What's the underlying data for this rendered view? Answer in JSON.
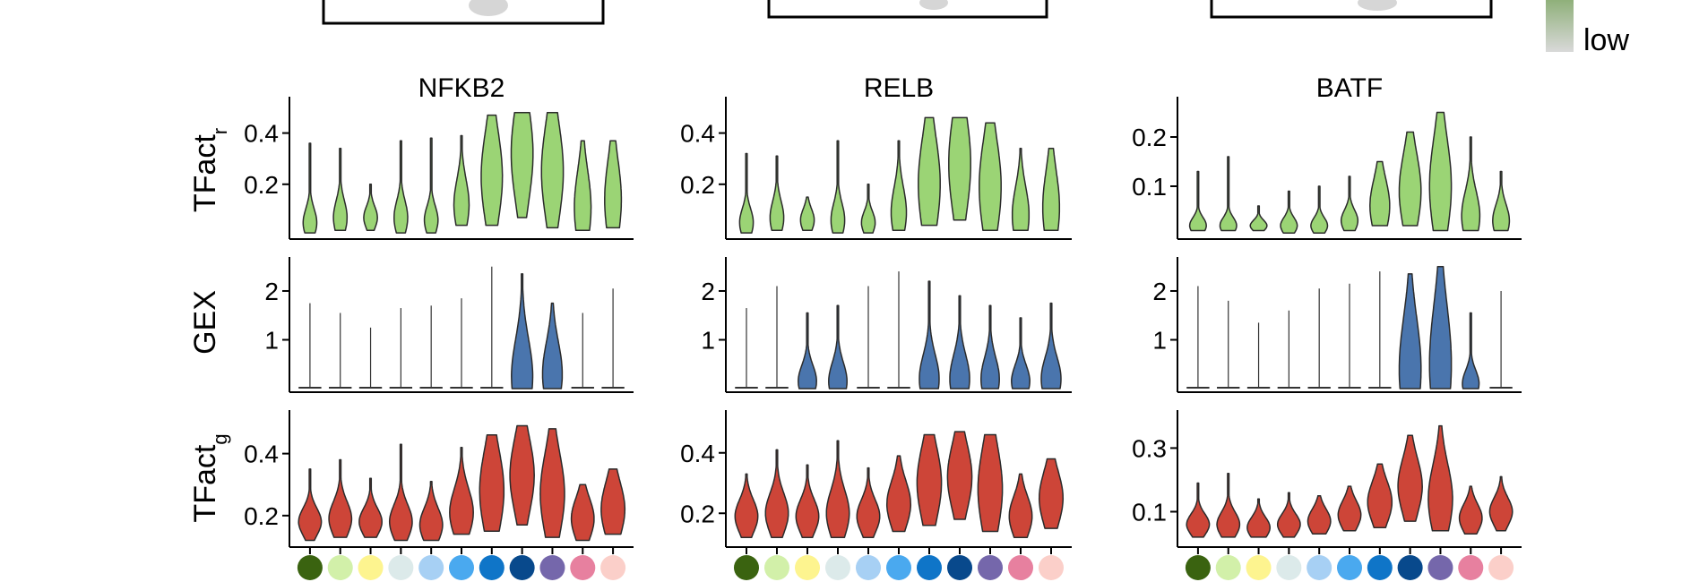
{
  "legend": {
    "low_label": "low",
    "gradient_colors": [
      "#8fb07a",
      "#d9d9d9"
    ]
  },
  "row_labels": [
    {
      "base": "TFact",
      "sub": "r"
    },
    {
      "base": "GEX",
      "sub": ""
    },
    {
      "base": "TFact",
      "sub": "g"
    }
  ],
  "cluster_colors": [
    "#3a6310",
    "#d2f0a9",
    "#fdf48f",
    "#dceaea",
    "#a7d0f4",
    "#4aa9ef",
    "#0f75c8",
    "#08498c",
    "#7567ab",
    "#e7809f",
    "#fbcfc9"
  ],
  "chart_data": [
    {
      "type": "violin",
      "title": "NFKB2",
      "row": "TFact_r",
      "fill": "#9bd475",
      "ylim": [
        0,
        0.5
      ],
      "yticks": [
        0.2,
        0.4
      ],
      "ytick_labels": [
        "0.2",
        "0.4"
      ],
      "violins": [
        {
          "min": 0.01,
          "max": 0.36,
          "median": 0.05,
          "q1": 0.03,
          "q3": 0.08,
          "width": 0.45
        },
        {
          "min": 0.02,
          "max": 0.34,
          "median": 0.07,
          "q1": 0.04,
          "q3": 0.1,
          "width": 0.45
        },
        {
          "min": 0.02,
          "max": 0.2,
          "median": 0.07,
          "q1": 0.05,
          "q3": 0.09,
          "width": 0.45
        },
        {
          "min": 0.01,
          "max": 0.37,
          "median": 0.07,
          "q1": 0.04,
          "q3": 0.1,
          "width": 0.45
        },
        {
          "min": 0.01,
          "max": 0.38,
          "median": 0.06,
          "q1": 0.04,
          "q3": 0.09,
          "width": 0.45
        },
        {
          "min": 0.04,
          "max": 0.39,
          "median": 0.12,
          "q1": 0.08,
          "q3": 0.17,
          "width": 0.5
        },
        {
          "min": 0.04,
          "max": 0.47,
          "median": 0.23,
          "q1": 0.15,
          "q3": 0.31,
          "width": 0.7
        },
        {
          "min": 0.07,
          "max": 0.48,
          "median": 0.32,
          "q1": 0.22,
          "q3": 0.39,
          "width": 0.72
        },
        {
          "min": 0.03,
          "max": 0.48,
          "median": 0.25,
          "q1": 0.16,
          "q3": 0.33,
          "width": 0.72
        },
        {
          "min": 0.02,
          "max": 0.37,
          "median": 0.11,
          "q1": 0.06,
          "q3": 0.19,
          "width": 0.55
        },
        {
          "min": 0.03,
          "max": 0.37,
          "median": 0.14,
          "q1": 0.08,
          "q3": 0.22,
          "width": 0.55
        }
      ]
    },
    {
      "type": "violin",
      "title": "RELB",
      "row": "TFact_r",
      "fill": "#9bd475",
      "ylim": [
        0,
        0.5
      ],
      "yticks": [
        0.2,
        0.4
      ],
      "ytick_labels": [
        "0.2",
        "0.4"
      ],
      "violins": [
        {
          "min": 0.01,
          "max": 0.32,
          "median": 0.05,
          "q1": 0.03,
          "q3": 0.08,
          "width": 0.45
        },
        {
          "min": 0.02,
          "max": 0.31,
          "median": 0.07,
          "q1": 0.04,
          "q3": 0.1,
          "width": 0.45
        },
        {
          "min": 0.02,
          "max": 0.15,
          "median": 0.06,
          "q1": 0.04,
          "q3": 0.08,
          "width": 0.45
        },
        {
          "min": 0.01,
          "max": 0.37,
          "median": 0.06,
          "q1": 0.03,
          "q3": 0.09,
          "width": 0.45
        },
        {
          "min": 0.01,
          "max": 0.2,
          "median": 0.05,
          "q1": 0.03,
          "q3": 0.07,
          "width": 0.45
        },
        {
          "min": 0.02,
          "max": 0.37,
          "median": 0.09,
          "q1": 0.05,
          "q3": 0.14,
          "width": 0.5
        },
        {
          "min": 0.04,
          "max": 0.46,
          "median": 0.2,
          "q1": 0.12,
          "q3": 0.29,
          "width": 0.72
        },
        {
          "min": 0.06,
          "max": 0.46,
          "median": 0.28,
          "q1": 0.18,
          "q3": 0.36,
          "width": 0.72
        },
        {
          "min": 0.02,
          "max": 0.44,
          "median": 0.19,
          "q1": 0.11,
          "q3": 0.28,
          "width": 0.72
        },
        {
          "min": 0.02,
          "max": 0.34,
          "median": 0.08,
          "q1": 0.05,
          "q3": 0.15,
          "width": 0.55
        },
        {
          "min": 0.02,
          "max": 0.34,
          "median": 0.11,
          "q1": 0.06,
          "q3": 0.19,
          "width": 0.55
        }
      ]
    },
    {
      "type": "violin",
      "title": "BATF",
      "row": "TFact_r",
      "fill": "#9bd475",
      "ylim": [
        0,
        0.26
      ],
      "yticks": [
        0.1,
        0.2
      ],
      "ytick_labels": [
        "0.1",
        "0.2"
      ],
      "violins": [
        {
          "min": 0.01,
          "max": 0.13,
          "median": 0.02,
          "q1": 0.015,
          "q3": 0.03,
          "width": 0.55
        },
        {
          "min": 0.01,
          "max": 0.16,
          "median": 0.02,
          "q1": 0.015,
          "q3": 0.03,
          "width": 0.55
        },
        {
          "min": 0.01,
          "max": 0.06,
          "median": 0.02,
          "q1": 0.015,
          "q3": 0.025,
          "width": 0.55
        },
        {
          "min": 0.005,
          "max": 0.09,
          "median": 0.02,
          "q1": 0.01,
          "q3": 0.025,
          "width": 0.55
        },
        {
          "min": 0.005,
          "max": 0.1,
          "median": 0.02,
          "q1": 0.01,
          "q3": 0.025,
          "width": 0.55
        },
        {
          "min": 0.01,
          "max": 0.12,
          "median": 0.03,
          "q1": 0.02,
          "q3": 0.04,
          "width": 0.55
        },
        {
          "min": 0.02,
          "max": 0.15,
          "median": 0.06,
          "q1": 0.04,
          "q3": 0.09,
          "width": 0.65
        },
        {
          "min": 0.02,
          "max": 0.21,
          "median": 0.09,
          "q1": 0.05,
          "q3": 0.12,
          "width": 0.72
        },
        {
          "min": 0.01,
          "max": 0.25,
          "median": 0.1,
          "q1": 0.05,
          "q3": 0.14,
          "width": 0.72
        },
        {
          "min": 0.01,
          "max": 0.2,
          "median": 0.04,
          "q1": 0.025,
          "q3": 0.07,
          "width": 0.6
        },
        {
          "min": 0.01,
          "max": 0.13,
          "median": 0.03,
          "q1": 0.02,
          "q3": 0.05,
          "width": 0.55
        }
      ]
    },
    {
      "type": "violin",
      "title": "",
      "row": "GEX",
      "fill": "#4a75ad",
      "ylim": [
        0,
        2.55
      ],
      "yticks": [
        1,
        2
      ],
      "ytick_labels": [
        "1",
        "2"
      ],
      "violins": [
        {
          "min": 0,
          "max": 1.75,
          "median": 0,
          "q1": 0,
          "q3": 0,
          "width": 0.75,
          "flat": true
        },
        {
          "min": 0,
          "max": 1.55,
          "median": 0,
          "q1": 0,
          "q3": 0,
          "width": 0.75,
          "flat": true
        },
        {
          "min": 0,
          "max": 1.25,
          "median": 0,
          "q1": 0,
          "q3": 0,
          "width": 0.75,
          "flat": true
        },
        {
          "min": 0,
          "max": 1.65,
          "median": 0,
          "q1": 0,
          "q3": 0,
          "width": 0.75,
          "flat": true
        },
        {
          "min": 0,
          "max": 1.7,
          "median": 0,
          "q1": 0,
          "q3": 0,
          "width": 0.75,
          "flat": true
        },
        {
          "min": 0,
          "max": 1.85,
          "median": 0,
          "q1": 0,
          "q3": 0,
          "width": 0.75,
          "flat": true
        },
        {
          "min": 0,
          "max": 2.5,
          "median": 0,
          "q1": 0,
          "q3": 0,
          "width": 0.75,
          "flat": true
        },
        {
          "min": 0,
          "max": 2.35,
          "median": 0.25,
          "q1": 0.1,
          "q3": 0.8,
          "width": 0.7
        },
        {
          "min": 0,
          "max": 1.75,
          "median": 0.3,
          "q1": 0.1,
          "q3": 0.7,
          "width": 0.65
        },
        {
          "min": 0,
          "max": 1.55,
          "median": 0,
          "q1": 0,
          "q3": 0,
          "width": 0.75,
          "flat": true
        },
        {
          "min": 0,
          "max": 2.05,
          "median": 0,
          "q1": 0,
          "q3": 0,
          "width": 0.75,
          "flat": true
        }
      ]
    },
    {
      "type": "violin",
      "title": "",
      "row": "GEX",
      "fill": "#4a75ad",
      "ylim": [
        0,
        2.55
      ],
      "yticks": [
        1,
        2
      ],
      "ytick_labels": [
        "1",
        "2"
      ],
      "violins": [
        {
          "min": 0,
          "max": 1.65,
          "median": 0,
          "q1": 0,
          "q3": 0,
          "width": 0.75,
          "flat": true
        },
        {
          "min": 0,
          "max": 2.1,
          "median": 0,
          "q1": 0,
          "q3": 0,
          "width": 0.75,
          "flat": true
        },
        {
          "min": 0,
          "max": 1.55,
          "median": 0.15,
          "q1": 0.05,
          "q3": 0.35,
          "width": 0.6
        },
        {
          "min": 0,
          "max": 1.7,
          "median": 0.15,
          "q1": 0.05,
          "q3": 0.4,
          "width": 0.6
        },
        {
          "min": 0,
          "max": 2.1,
          "median": 0,
          "q1": 0,
          "q3": 0,
          "width": 0.75,
          "flat": true
        },
        {
          "min": 0,
          "max": 2.4,
          "median": 0,
          "q1": 0,
          "q3": 0,
          "width": 0.75,
          "flat": true
        },
        {
          "min": 0,
          "max": 2.2,
          "median": 0.2,
          "q1": 0.05,
          "q3": 0.5,
          "width": 0.65
        },
        {
          "min": 0,
          "max": 1.9,
          "median": 0.2,
          "q1": 0.05,
          "q3": 0.5,
          "width": 0.65
        },
        {
          "min": 0,
          "max": 1.7,
          "median": 0.2,
          "q1": 0.05,
          "q3": 0.45,
          "width": 0.6
        },
        {
          "min": 0,
          "max": 1.45,
          "median": 0.15,
          "q1": 0.05,
          "q3": 0.35,
          "width": 0.6
        },
        {
          "min": 0,
          "max": 1.75,
          "median": 0.2,
          "q1": 0.05,
          "q3": 0.45,
          "width": 0.65
        }
      ]
    },
    {
      "type": "violin",
      "title": "",
      "row": "GEX",
      "fill": "#4a75ad",
      "ylim": [
        0,
        2.55
      ],
      "yticks": [
        1,
        2
      ],
      "ytick_labels": [
        "1",
        "2"
      ],
      "violins": [
        {
          "min": 0,
          "max": 2.1,
          "median": 0,
          "q1": 0,
          "q3": 0,
          "width": 0.75,
          "flat": true
        },
        {
          "min": 0,
          "max": 1.8,
          "median": 0,
          "q1": 0,
          "q3": 0,
          "width": 0.75,
          "flat": true
        },
        {
          "min": 0,
          "max": 1.35,
          "median": 0,
          "q1": 0,
          "q3": 0,
          "width": 0.75,
          "flat": true
        },
        {
          "min": 0,
          "max": 1.6,
          "median": 0,
          "q1": 0,
          "q3": 0,
          "width": 0.75,
          "flat": true
        },
        {
          "min": 0,
          "max": 2.05,
          "median": 0,
          "q1": 0,
          "q3": 0,
          "width": 0.75,
          "flat": true
        },
        {
          "min": 0,
          "max": 2.15,
          "median": 0,
          "q1": 0,
          "q3": 0,
          "width": 0.75,
          "flat": true
        },
        {
          "min": 0,
          "max": 2.4,
          "median": 0,
          "q1": 0,
          "q3": 0,
          "width": 0.75,
          "flat": true
        },
        {
          "min": 0,
          "max": 2.35,
          "median": 0.4,
          "q1": 0.15,
          "q3": 1.1,
          "width": 0.72
        },
        {
          "min": 0,
          "max": 2.5,
          "median": 0.5,
          "q1": 0.2,
          "q3": 1.3,
          "width": 0.72
        },
        {
          "min": 0,
          "max": 1.55,
          "median": 0.1,
          "q1": 0.05,
          "q3": 0.3,
          "width": 0.55
        },
        {
          "min": 0,
          "max": 2.0,
          "median": 0,
          "q1": 0,
          "q3": 0,
          "width": 0.75,
          "flat": true
        }
      ]
    },
    {
      "type": "violin",
      "title": "",
      "row": "TFact_g",
      "fill": "#cd4538",
      "ylim": [
        0.11,
        0.5
      ],
      "yticks": [
        0.2,
        0.4
      ],
      "ytick_labels": [
        "0.2",
        "0.4"
      ],
      "violins": [
        {
          "min": 0.12,
          "max": 0.35,
          "median": 0.18,
          "q1": 0.16,
          "q3": 0.2,
          "width": 0.75
        },
        {
          "min": 0.13,
          "max": 0.38,
          "median": 0.19,
          "q1": 0.17,
          "q3": 0.22,
          "width": 0.75
        },
        {
          "min": 0.13,
          "max": 0.32,
          "median": 0.18,
          "q1": 0.16,
          "q3": 0.2,
          "width": 0.75
        },
        {
          "min": 0.12,
          "max": 0.43,
          "median": 0.18,
          "q1": 0.16,
          "q3": 0.21,
          "width": 0.75
        },
        {
          "min": 0.12,
          "max": 0.31,
          "median": 0.17,
          "q1": 0.15,
          "q3": 0.2,
          "width": 0.75
        },
        {
          "min": 0.14,
          "max": 0.42,
          "median": 0.21,
          "q1": 0.18,
          "q3": 0.25,
          "width": 0.78
        },
        {
          "min": 0.15,
          "max": 0.46,
          "median": 0.28,
          "q1": 0.22,
          "q3": 0.34,
          "width": 0.8
        },
        {
          "min": 0.17,
          "max": 0.49,
          "median": 0.33,
          "q1": 0.27,
          "q3": 0.38,
          "width": 0.8
        },
        {
          "min": 0.13,
          "max": 0.48,
          "median": 0.27,
          "q1": 0.21,
          "q3": 0.33,
          "width": 0.8
        },
        {
          "min": 0.12,
          "max": 0.3,
          "median": 0.19,
          "q1": 0.16,
          "q3": 0.22,
          "width": 0.75
        },
        {
          "min": 0.14,
          "max": 0.35,
          "median": 0.22,
          "q1": 0.18,
          "q3": 0.26,
          "width": 0.78
        }
      ]
    },
    {
      "type": "violin",
      "title": "",
      "row": "TFact_g",
      "fill": "#cd4538",
      "ylim": [
        0.1,
        0.5
      ],
      "yticks": [
        0.2,
        0.4
      ],
      "ytick_labels": [
        "0.2",
        "0.4"
      ],
      "violins": [
        {
          "min": 0.12,
          "max": 0.33,
          "median": 0.19,
          "q1": 0.17,
          "q3": 0.22,
          "width": 0.75
        },
        {
          "min": 0.12,
          "max": 0.41,
          "median": 0.2,
          "q1": 0.17,
          "q3": 0.23,
          "width": 0.75
        },
        {
          "min": 0.12,
          "max": 0.36,
          "median": 0.19,
          "q1": 0.17,
          "q3": 0.22,
          "width": 0.75
        },
        {
          "min": 0.12,
          "max": 0.44,
          "median": 0.2,
          "q1": 0.17,
          "q3": 0.24,
          "width": 0.75
        },
        {
          "min": 0.12,
          "max": 0.35,
          "median": 0.19,
          "q1": 0.17,
          "q3": 0.22,
          "width": 0.75
        },
        {
          "min": 0.14,
          "max": 0.39,
          "median": 0.23,
          "q1": 0.2,
          "q3": 0.27,
          "width": 0.78
        },
        {
          "min": 0.16,
          "max": 0.46,
          "median": 0.3,
          "q1": 0.24,
          "q3": 0.35,
          "width": 0.8
        },
        {
          "min": 0.18,
          "max": 0.47,
          "median": 0.32,
          "q1": 0.27,
          "q3": 0.37,
          "width": 0.8
        },
        {
          "min": 0.14,
          "max": 0.46,
          "median": 0.28,
          "q1": 0.21,
          "q3": 0.34,
          "width": 0.8
        },
        {
          "min": 0.12,
          "max": 0.33,
          "median": 0.19,
          "q1": 0.16,
          "q3": 0.22,
          "width": 0.75
        },
        {
          "min": 0.15,
          "max": 0.38,
          "median": 0.25,
          "q1": 0.21,
          "q3": 0.29,
          "width": 0.78
        }
      ]
    },
    {
      "type": "violin",
      "title": "",
      "row": "TFact_g",
      "fill": "#cd4538",
      "ylim": [
        0,
        0.38
      ],
      "yticks": [
        0.1,
        0.3
      ],
      "ytick_labels": [
        "0.1",
        "0.3"
      ],
      "violins": [
        {
          "min": 0.02,
          "max": 0.19,
          "median": 0.06,
          "q1": 0.045,
          "q3": 0.075,
          "width": 0.75
        },
        {
          "min": 0.02,
          "max": 0.22,
          "median": 0.06,
          "q1": 0.045,
          "q3": 0.08,
          "width": 0.75
        },
        {
          "min": 0.02,
          "max": 0.14,
          "median": 0.05,
          "q1": 0.04,
          "q3": 0.07,
          "width": 0.75
        },
        {
          "min": 0.02,
          "max": 0.16,
          "median": 0.06,
          "q1": 0.045,
          "q3": 0.075,
          "width": 0.75
        },
        {
          "min": 0.03,
          "max": 0.15,
          "median": 0.07,
          "q1": 0.055,
          "q3": 0.09,
          "width": 0.75
        },
        {
          "min": 0.04,
          "max": 0.18,
          "median": 0.09,
          "q1": 0.07,
          "q3": 0.11,
          "width": 0.75
        },
        {
          "min": 0.05,
          "max": 0.25,
          "median": 0.13,
          "q1": 0.1,
          "q3": 0.16,
          "width": 0.8
        },
        {
          "min": 0.07,
          "max": 0.34,
          "median": 0.18,
          "q1": 0.14,
          "q3": 0.22,
          "width": 0.8
        },
        {
          "min": 0.04,
          "max": 0.37,
          "median": 0.14,
          "q1": 0.09,
          "q3": 0.19,
          "width": 0.8
        },
        {
          "min": 0.03,
          "max": 0.18,
          "median": 0.08,
          "q1": 0.06,
          "q3": 0.1,
          "width": 0.75
        },
        {
          "min": 0.04,
          "max": 0.21,
          "median": 0.1,
          "q1": 0.08,
          "q3": 0.12,
          "width": 0.75
        }
      ]
    }
  ]
}
